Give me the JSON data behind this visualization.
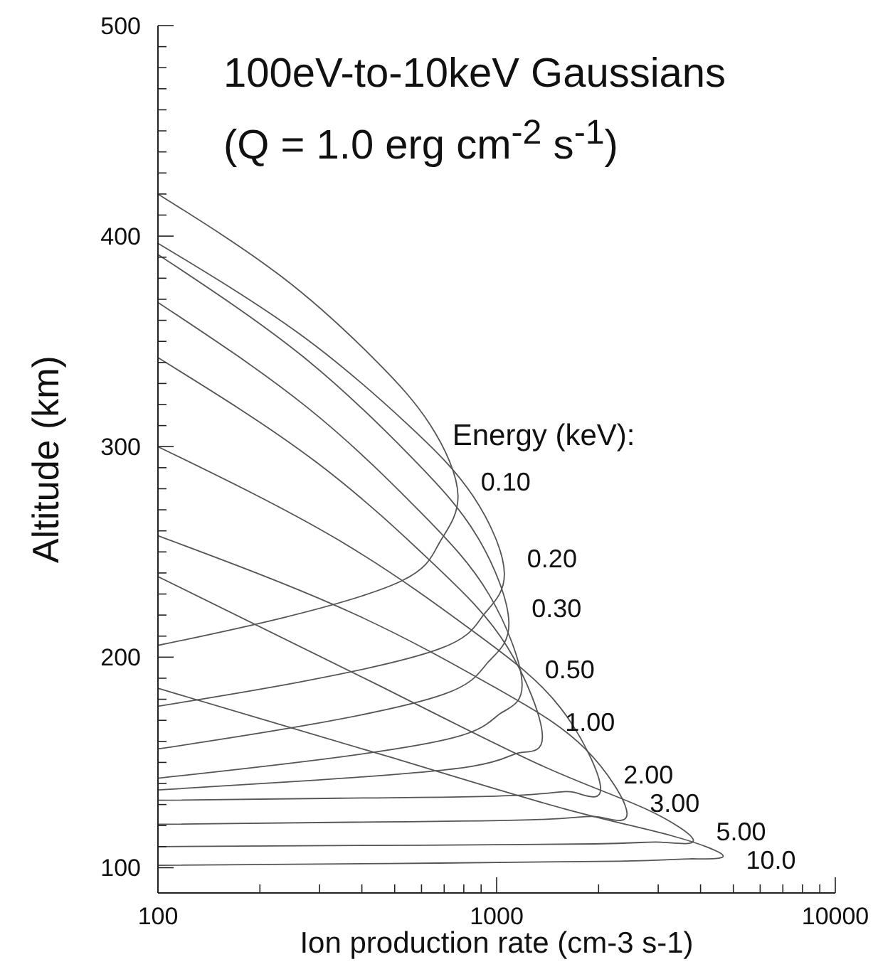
{
  "chart_data": {
    "type": "line",
    "title": "100eV-to-10keV Gaussians",
    "subtitle": "(Q = 1.0 erg cm$^{-2}$ s$^{-1}$)",
    "xlabel": "Ion production rate (cm-3 s-1)",
    "ylabel": "Altitude (km)",
    "legend_title": "Energy (keV):",
    "log": "x",
    "xlim": [
      100,
      10000
    ],
    "ylim": [
      88,
      500
    ],
    "xticks": [
      100,
      {
        "value": 200,
        "label": null
      },
      {
        "value": 300,
        "label": null
      },
      {
        "value": 400,
        "label": null
      },
      {
        "value": 500,
        "label": null
      },
      {
        "value": 600,
        "label": null
      },
      {
        "value": 700,
        "label": null
      },
      {
        "value": 800,
        "label": null
      },
      {
        "value": 900,
        "label": null
      },
      1000,
      {
        "value": 2000,
        "label": null
      },
      {
        "value": 3000,
        "label": null
      },
      {
        "value": 4000,
        "label": null
      },
      {
        "value": 5000,
        "label": null
      },
      {
        "value": 6000,
        "label": null
      },
      {
        "value": 7000,
        "label": null
      },
      {
        "value": 8000,
        "label": null
      },
      {
        "value": 9000,
        "label": null
      },
      10000
    ],
    "yticks": [
      100,
      {
        "value": 110,
        "label": null
      },
      {
        "value": 120,
        "label": null
      },
      {
        "value": 130,
        "label": null
      },
      {
        "value": 140,
        "label": null
      },
      {
        "value": 150,
        "label": null
      },
      {
        "value": 160,
        "label": null
      },
      {
        "value": 170,
        "label": null
      },
      {
        "value": 180,
        "label": null
      },
      {
        "value": 190,
        "label": null
      },
      200,
      {
        "value": 210,
        "label": null
      },
      {
        "value": 220,
        "label": null
      },
      {
        "value": 230,
        "label": null
      },
      {
        "value": 240,
        "label": null
      },
      {
        "value": 250,
        "label": null
      },
      {
        "value": 260,
        "label": null
      },
      {
        "value": 270,
        "label": null
      },
      {
        "value": 280,
        "label": null
      },
      {
        "value": 290,
        "label": null
      },
      300,
      {
        "value": 310,
        "label": null
      },
      {
        "value": 320,
        "label": null
      },
      {
        "value": 330,
        "label": null
      },
      {
        "value": 340,
        "label": null
      },
      {
        "value": 350,
        "label": null
      },
      {
        "value": 360,
        "label": null
      },
      {
        "value": 370,
        "label": null
      },
      {
        "value": 380,
        "label": null
      },
      {
        "value": 390,
        "label": null
      },
      400,
      {
        "value": 410,
        "label": null
      },
      {
        "value": 420,
        "label": null
      },
      {
        "value": 430,
        "label": null
      },
      {
        "value": 440,
        "label": null
      },
      {
        "value": 450,
        "label": null
      },
      {
        "value": 460,
        "label": null
      },
      {
        "value": 470,
        "label": null
      },
      {
        "value": 480,
        "label": null
      },
      {
        "value": 490,
        "label": null
      },
      500
    ],
    "series": [
      {
        "name": "0.10",
        "color": "#555555",
        "x": [
          100,
          232,
          435,
          637,
          769,
          678,
          527,
          232,
          100
        ],
        "values": [
          420,
          380.7,
          341.6,
          310.3,
          276.7,
          254.4,
          236.4,
          218.6,
          205.6
        ]
      },
      {
        "name": "0.20",
        "color": "#555555",
        "x": [
          100,
          262,
          545,
          852,
          1054,
          914,
          682,
          262,
          100
        ],
        "values": [
          396.6,
          353.5,
          310.7,
          276.5,
          239.8,
          220,
          204.1,
          188.2,
          176.7
        ]
      },
      {
        "name": "0.30",
        "color": "#555555",
        "x": [
          100,
          266,
          557,
          877,
          1087,
          942,
          699,
          266,
          100
        ],
        "values": [
          391.3,
          343.2,
          295.4,
          257.2,
          216.3,
          197.5,
          182.4,
          167.3,
          156.4
        ]
      },
      {
        "name": "0.50",
        "color": "#555555",
        "x": [
          100,
          276,
          594,
          950,
          1189,
          1024,
          752,
          276,
          100
        ],
        "values": [
          368.5,
          318.6,
          269.1,
          229.7,
          187.2,
          173.2,
          161.9,
          150.6,
          142.5
        ]
      },
      {
        "name": "1.00",
        "color": "#555555",
        "x": [
          100,
          292,
          656,
          1077,
          1365,
          1166,
          841,
          292,
          100
        ],
        "values": [
          342.3,
          292.9,
          243.8,
          204.7,
          162.6,
          154.6,
          148.1,
          141.6,
          136.9
        ]
      },
      {
        "name": "2.00",
        "color": "#555555",
        "x": [
          100,
          344,
          874,
          1549,
          2028,
          1693,
          1163,
          344,
          100
        ],
        "values": [
          300,
          255.3,
          211,
          175.6,
          137.6,
          135.8,
          134.4,
          133,
          132
        ]
      },
      {
        "name": "3.00",
        "color": "#555555",
        "x": [
          100,
          370,
          994,
          1823,
          2427,
          2004,
          1346,
          370,
          100
        ],
        "values": [
          257.7,
          221.4,
          185.4,
          156.6,
          125.7,
          124.1,
          122.9,
          121.6,
          120.6
        ]
      },
      {
        "name": "5.00",
        "color": "#555555",
        "x": [
          100,
          445,
          1375,
          2748,
          3811,
          3063,
          1944,
          445,
          100
        ],
        "values": [
          238.3,
          186.9,
          148.1,
          128,
          113,
          112.1,
          111.3,
          110.6,
          110
        ]
      },
      {
        "name": "10.0",
        "color": "#555555",
        "x": [
          100,
          483,
          1590,
          3299,
          4666,
          3705,
          2291,
          483,
          100
        ],
        "values": [
          185.2,
          152.6,
          127.9,
          115.1,
          105.6,
          104.2,
          103.1,
          102,
          101.1
        ]
      }
    ]
  }
}
